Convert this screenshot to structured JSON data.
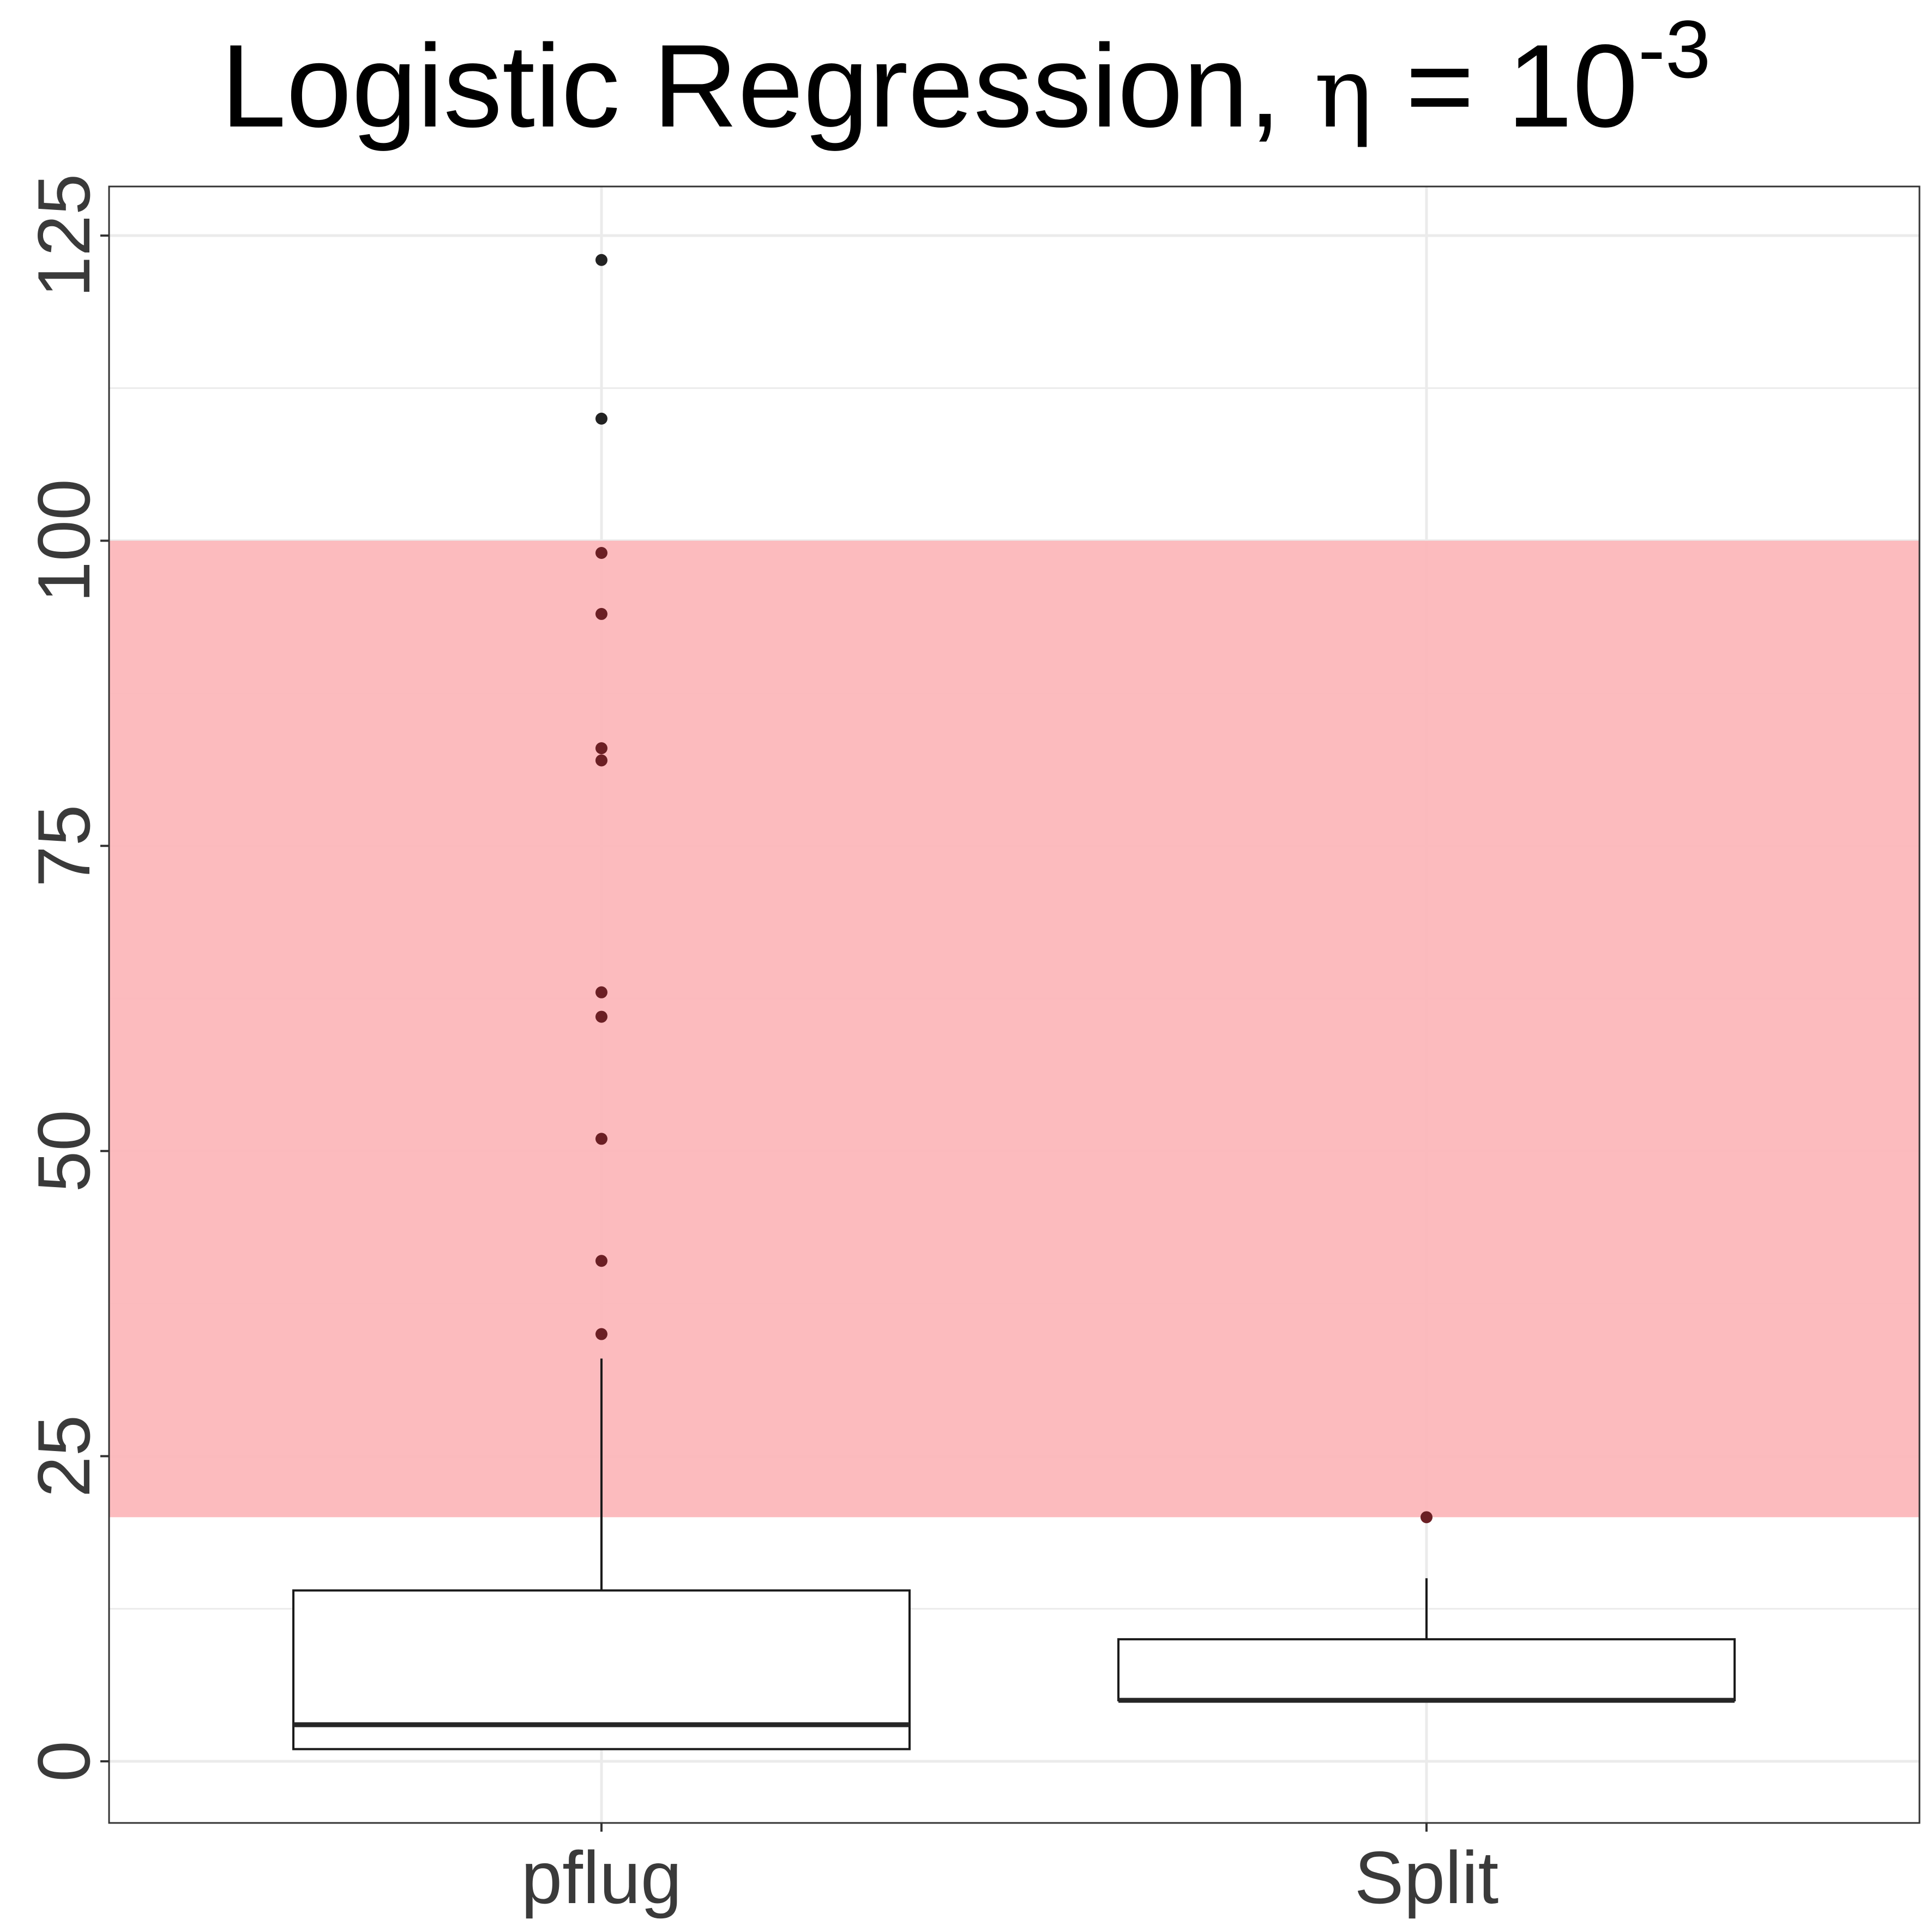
{
  "chart_data": {
    "type": "box",
    "title": {
      "text": "Logistic Regression, ",
      "eta": "η",
      "equals": " = 10",
      "superscript": "-3"
    },
    "xlabel": "",
    "ylabel": "",
    "categories": [
      "pflug",
      "Split"
    ],
    "ylim": [
      -11,
      128
    ],
    "yticks": [
      0,
      25,
      50,
      75,
      100,
      125
    ],
    "yticks_labels": [
      "0",
      "25",
      "50",
      "75",
      "100",
      "125"
    ],
    "minor_yticks": [
      12.5,
      37.5,
      62.5,
      87.5,
      112.5
    ],
    "grid": true,
    "highlight_band": {
      "ymin": 20,
      "ymax": 100,
      "color": "#fcb5b9"
    },
    "boxes": [
      {
        "category": "pflug",
        "whisker_low": 1,
        "q1": 1,
        "median": 3,
        "q3": 14,
        "whisker_high": 33,
        "outliers": [
          35,
          41,
          51,
          61,
          63,
          82,
          83,
          94,
          99,
          110,
          123
        ]
      },
      {
        "category": "Split",
        "whisker_low": 5,
        "q1": 5,
        "median": 5,
        "q3": 10,
        "whisker_high": 15,
        "outliers": [
          20
        ]
      }
    ],
    "colors": {
      "panel_border": "#333333",
      "grid": "#ebebeb",
      "box_stroke": "#1a1a1a",
      "median": "#262626",
      "outlier": "#222222",
      "outlier_in_band": "#6b1f24"
    }
  }
}
